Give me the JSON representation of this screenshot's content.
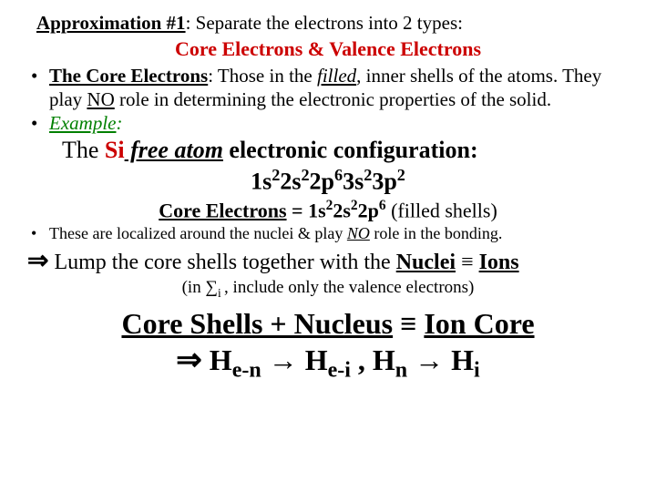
{
  "colors": {
    "red": "#cc0000",
    "green": "#008000",
    "black": "#000000",
    "background": "#ffffff"
  },
  "fontsizes": {
    "body": 21,
    "subtitle": 22,
    "indent": 26,
    "config": 26,
    "core": 22,
    "small": 18,
    "arrow": 24,
    "paren": 19,
    "big": 32
  },
  "title": {
    "lead": "Approximation #1",
    "rest": ": Separate the electrons into 2 types:"
  },
  "subtitle": "Core Electrons & Valence Electrons",
  "b1": {
    "lead": "The Core Electrons",
    "mid": ": Those in the ",
    "filled": "filled",
    "rest1": ", inner shells of the atoms. They play ",
    "no": "NO",
    "rest2": " role in determining the electronic properties of the solid."
  },
  "b2": {
    "lead": "Example",
    "colon": ":"
  },
  "si_line": {
    "p1": "The ",
    "si": "Si",
    "fa": " free atom",
    "p2": " electronic configuration:"
  },
  "config": {
    "t1": "1s",
    "e1": "2",
    "t2": "2s",
    "e2": "2",
    "t3": "2p",
    "e3": "6",
    "t4": "3s",
    "e4": "2",
    "t5": "3p",
    "e5": "2"
  },
  "core_line": {
    "lead": "Core Electrons",
    "eq": " = 1s",
    "e1": "2",
    "t2": "2s",
    "e2": "2",
    "t3": "2p",
    "e3": "6",
    "tail": "  (filled shells)"
  },
  "b3": {
    "p1": "These are localized around the nuclei & play ",
    "no": "NO",
    "p2": " role in the bonding."
  },
  "lump": {
    "arrow": "⇒",
    "p1": "  Lump the core shells together with the ",
    "nuclei": "Nuclei",
    "equiv": " ≡ ",
    "ions": "Ions"
  },
  "paren": {
    "p1": "(in ",
    "sum": "∑",
    "sub": "i ",
    "p2": ", include only the valence electrons)"
  },
  "bigeq": {
    "l1a": "Core Shells  +  Nucleus",
    "equiv": "  ≡  ",
    "l1b": "Ion Core",
    "arrow": "⇒",
    "sp": "   ",
    "h1": "H",
    "s1": "e-n",
    "to": " → ",
    "h2": "H",
    "s2": "e-i",
    "comma": " ,   ",
    "h3": "H",
    "s3": "n",
    "h4": "H",
    "s4": "i"
  }
}
